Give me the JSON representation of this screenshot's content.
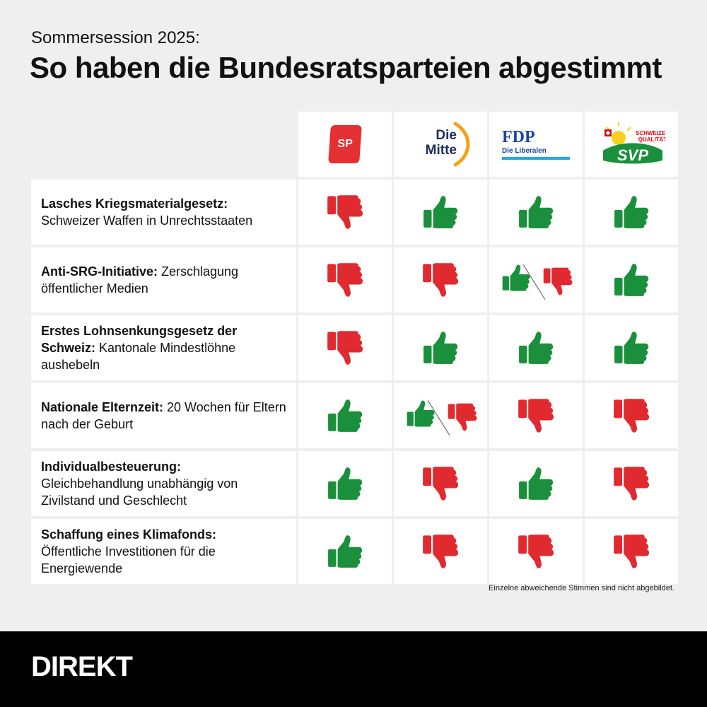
{
  "header": {
    "subtitle": "Sommersession 2025:",
    "title": "So haben die Bundesratsparteien abgestimmt"
  },
  "colors": {
    "yes": "#1a8f3c",
    "no": "#e02a2f",
    "background": "#efefef",
    "footer": "#000000"
  },
  "parties": [
    {
      "id": "sp",
      "logo_text": "SP",
      "color": "#e53033"
    },
    {
      "id": "mitte",
      "logo_line1": "Die",
      "logo_line2": "Mitte",
      "color": "#1c2f5a",
      "accent": "#f5a21b"
    },
    {
      "id": "fdp",
      "logo_text": "FDP",
      "logo_sub": "Die Liberalen",
      "color": "#17479e"
    },
    {
      "id": "svp",
      "logo_text": "SVP",
      "logo_sub1": "SCHWEIZER",
      "logo_sub2": "QUALITÄT",
      "color": "#1a8f3c"
    }
  ],
  "rows": [
    {
      "bold": "Lasches Kriegsmaterialgesetz:",
      "text": " Schweizer Waffen in Unrechtsstaaten",
      "break": true,
      "votes": [
        "no",
        "yes",
        "yes",
        "yes"
      ]
    },
    {
      "bold": "Anti-SRG-Initiative:",
      "text": " Zerschlagung öffentlicher Medien",
      "break": false,
      "votes": [
        "no",
        "no",
        "split",
        "yes"
      ]
    },
    {
      "bold": "Erstes Lohnsenkungsgesetz der Schweiz:",
      "text": " Kantonale Mindestlöhne aushebeln",
      "break": false,
      "votes": [
        "no",
        "yes",
        "yes",
        "yes"
      ]
    },
    {
      "bold": "Nationale Elternzeit:",
      "text": " 20 Wochen für Eltern nach der Geburt",
      "break": false,
      "votes": [
        "yes",
        "split",
        "no",
        "no"
      ]
    },
    {
      "bold": "Individualbesteuerung:",
      "text": " Gleichbehandlung unabhängig von Zivilstand und Geschlecht",
      "break": true,
      "votes": [
        "yes",
        "no",
        "yes",
        "no"
      ]
    },
    {
      "bold": "Schaffung eines Klimafonds:",
      "text": " Öffentliche Investitionen für die Energiewende",
      "break": true,
      "votes": [
        "yes",
        "no",
        "no",
        "no"
      ]
    }
  ],
  "footnote": "Einzelne abweichende Stimmen sind nicht abgebildet.",
  "brand": "DIREKT"
}
